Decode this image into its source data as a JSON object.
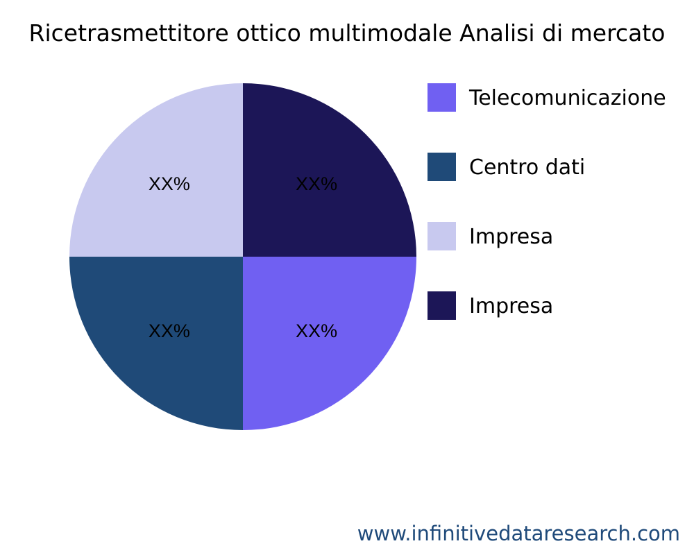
{
  "chart_data": {
    "type": "pie",
    "title": "Ricetrasmettitore ottico multimodale Analisi di mercato",
    "slices": [
      {
        "label": "Telecomunicazione",
        "value": 25,
        "display": "XX%",
        "color": "#7060f2"
      },
      {
        "label": "Centro dati",
        "value": 25,
        "display": "XX%",
        "color": "#1f4a78"
      },
      {
        "label": "Impresa",
        "value": 25,
        "display": "XX%",
        "color": "#c8c9ef"
      },
      {
        "label": "Impresa",
        "value": 25,
        "display": "XX%",
        "color": "#1c1657"
      }
    ],
    "legend_position": "right"
  },
  "footer": "www.infinitivedataresearch.com"
}
